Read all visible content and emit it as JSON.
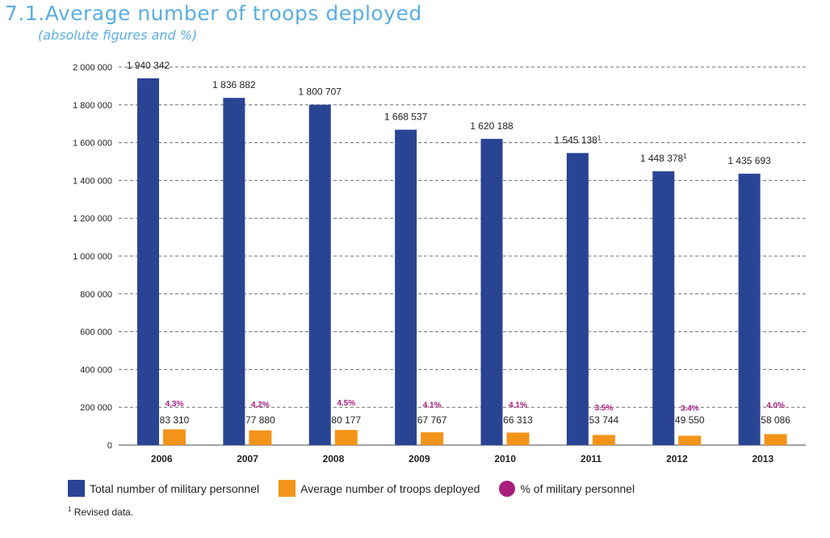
{
  "header": {
    "title": "7.1.Average number of troops deployed",
    "subtitle": "(absolute figures and %)"
  },
  "colors": {
    "total": "#2a4494",
    "deployed": "#f39419",
    "percent": "#a81e7e",
    "title": "#5aaee0"
  },
  "chart_data": {
    "type": "bar",
    "title": "7.1.Average number of troops deployed",
    "subtitle": "(absolute figures and %)",
    "categories": [
      "2006",
      "2007",
      "2008",
      "2009",
      "2010",
      "2011",
      "2012",
      "2013"
    ],
    "series": [
      {
        "name": "Total number of military personnel",
        "values": [
          1940342,
          1836882,
          1800707,
          1668537,
          1620188,
          1545138,
          1448378,
          1435693
        ],
        "labels": [
          "1 940 342",
          "1 836 882",
          "1 800 707",
          "1 668 537",
          "1 620 188",
          "1 545 138",
          "1 448 378",
          "1 435 693"
        ],
        "label_marks": [
          "",
          "",
          "",
          "",
          "",
          "1",
          "1",
          ""
        ]
      },
      {
        "name": "Average number of troops deployed",
        "values": [
          83310,
          77880,
          80177,
          67767,
          66313,
          53744,
          49550,
          58086
        ],
        "labels": [
          "83 310",
          "77 880",
          "80 177",
          "67 767",
          "66 313",
          "53 744",
          "49 550",
          "58 086"
        ]
      },
      {
        "name": "% of military personnel",
        "values": [
          4.3,
          4.2,
          4.5,
          4.1,
          4.1,
          3.5,
          3.4,
          4.0
        ],
        "labels": [
          "4.3%",
          "4.2%",
          "4.5%",
          "4.1%",
          "4.1%",
          "3.5%",
          "3.4%",
          "4.0%"
        ]
      }
    ],
    "ylim": [
      0,
      2000000
    ],
    "yticks": [
      0,
      200000,
      400000,
      600000,
      800000,
      1000000,
      1200000,
      1400000,
      1600000,
      1800000,
      2000000
    ],
    "ytick_labels": [
      "0",
      "200 000",
      "400 000",
      "600 000",
      "800 000",
      "1 000 000",
      "1 200 000",
      "1 400 000",
      "1 600 000",
      "1 800 000",
      "2 000 000"
    ],
    "grid": "dashed horizontal",
    "legend_position": "bottom"
  },
  "legend": {
    "total": "Total number of military personnel",
    "deployed": "Average number of troops deployed",
    "percent": "% of military personnel"
  },
  "footnote": {
    "mark": "1",
    "text": "Revised data."
  }
}
